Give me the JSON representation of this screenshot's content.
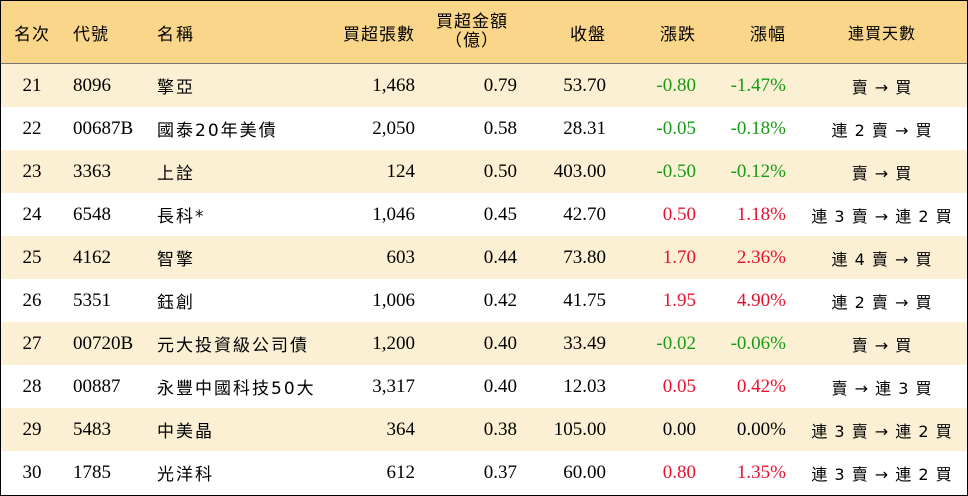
{
  "headers": {
    "rank": "名次",
    "code": "代號",
    "name": "名稱",
    "volume": "買超張數",
    "amount_line1": "買超金額",
    "amount_line2": "（億）",
    "close": "收盤",
    "change": "漲跌",
    "pct": "漲幅",
    "days": "連買天數"
  },
  "colors": {
    "header_bg": "#fad68a",
    "row_alt_bg": "#fbf0d4",
    "up": "#e8112d",
    "down": "#169b16"
  },
  "rows": [
    {
      "rank": "21",
      "code": "8096",
      "name": "擎亞",
      "volume": "1,468",
      "amount": "0.79",
      "close": "53.70",
      "change": "-0.80",
      "pct": "-1.47%",
      "days": "賣 → 買",
      "trend": "down"
    },
    {
      "rank": "22",
      "code": "00687B",
      "name": "國泰20年美債",
      "volume": "2,050",
      "amount": "0.58",
      "close": "28.31",
      "change": "-0.05",
      "pct": "-0.18%",
      "days": "連 2 賣 → 買",
      "trend": "down"
    },
    {
      "rank": "23",
      "code": "3363",
      "name": "上詮",
      "volume": "124",
      "amount": "0.50",
      "close": "403.00",
      "change": "-0.50",
      "pct": "-0.12%",
      "days": "賣 → 買",
      "trend": "down"
    },
    {
      "rank": "24",
      "code": "6548",
      "name": "長科*",
      "volume": "1,046",
      "amount": "0.45",
      "close": "42.70",
      "change": "0.50",
      "pct": "1.18%",
      "days": "連 3 賣 → 連 2 買",
      "trend": "up"
    },
    {
      "rank": "25",
      "code": "4162",
      "name": "智擎",
      "volume": "603",
      "amount": "0.44",
      "close": "73.80",
      "change": "1.70",
      "pct": "2.36%",
      "days": "連 4 賣 → 買",
      "trend": "up"
    },
    {
      "rank": "26",
      "code": "5351",
      "name": "鈺創",
      "volume": "1,006",
      "amount": "0.42",
      "close": "41.75",
      "change": "1.95",
      "pct": "4.90%",
      "days": "連 2 賣 → 買",
      "trend": "up"
    },
    {
      "rank": "27",
      "code": "00720B",
      "name": "元大投資級公司債",
      "volume": "1,200",
      "amount": "0.40",
      "close": "33.49",
      "change": "-0.02",
      "pct": "-0.06%",
      "days": "賣 → 買",
      "trend": "down"
    },
    {
      "rank": "28",
      "code": "00887",
      "name": "永豐中國科技50大",
      "volume": "3,317",
      "amount": "0.40",
      "close": "12.03",
      "change": "0.05",
      "pct": "0.42%",
      "days": "賣 → 連 3 買",
      "trend": "up"
    },
    {
      "rank": "29",
      "code": "5483",
      "name": "中美晶",
      "volume": "364",
      "amount": "0.38",
      "close": "105.00",
      "change": "0.00",
      "pct": "0.00%",
      "days": "連 3 賣 → 連 2 買",
      "trend": "flat"
    },
    {
      "rank": "30",
      "code": "1785",
      "name": "光洋科",
      "volume": "612",
      "amount": "0.37",
      "close": "60.00",
      "change": "0.80",
      "pct": "1.35%",
      "days": "連 3 賣 → 連 2 買",
      "trend": "up"
    }
  ]
}
